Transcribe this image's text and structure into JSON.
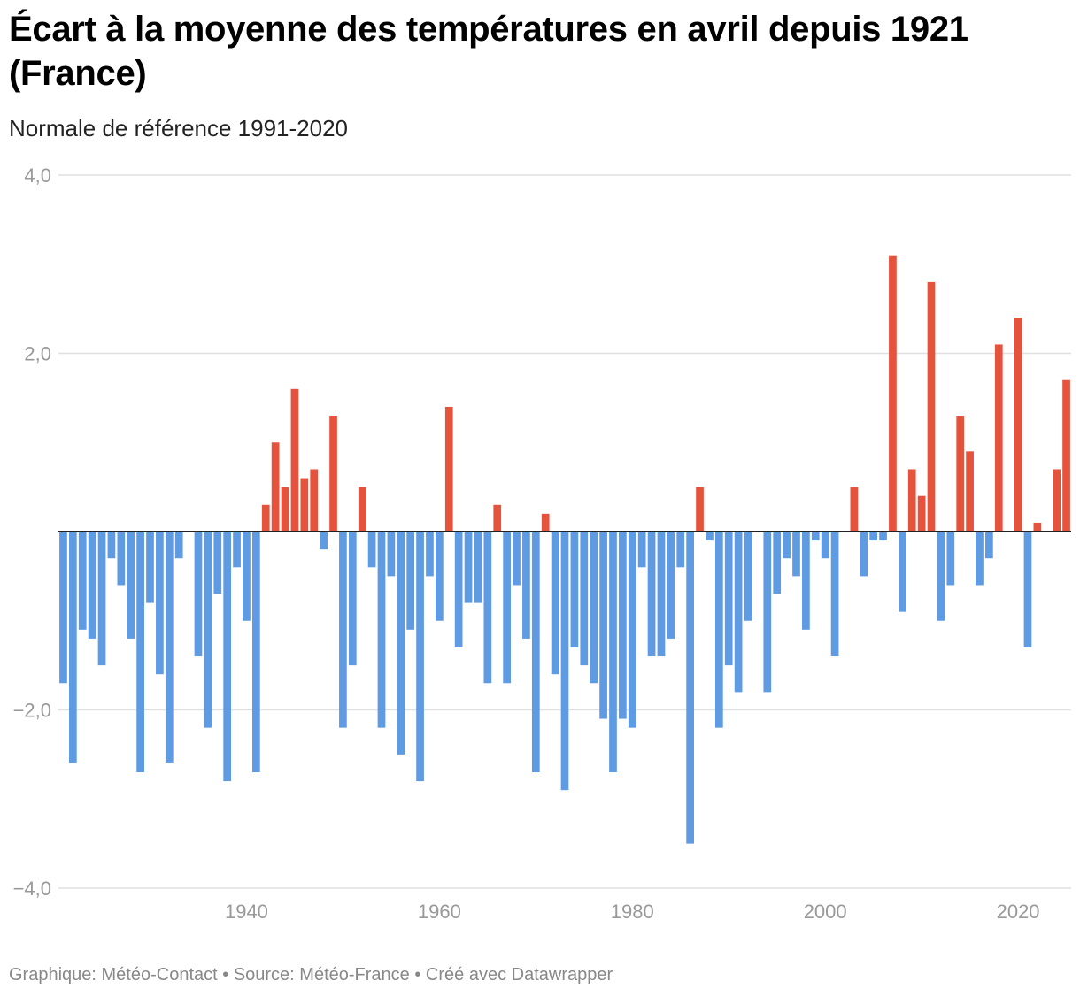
{
  "title": "Écart à la moyenne des températures en avril depuis 1921 (France)",
  "subtitle": "Normale de référence 1991-2020",
  "footer": {
    "credit": "Graphique: Météo-Contact",
    "separator": " • ",
    "source": "Source: Météo-France",
    "tool": "Créé avec Datawrapper"
  },
  "colors": {
    "positive": "#e5533d",
    "negative": "#5f9be3",
    "grid": "#e0e0e0",
    "zero": "#222222",
    "tick_text": "#999999"
  },
  "chart_data": {
    "type": "bar",
    "title": "Écart à la moyenne des températures en avril depuis 1921 (France)",
    "subtitle": "Normale de référence 1991-2020",
    "xlabel": "",
    "ylabel": "",
    "ylim": [
      -4,
      4
    ],
    "y_ticks": [
      4,
      2,
      -2,
      -4
    ],
    "y_tick_labels": [
      "4,0",
      "2,0",
      "−2,0",
      "−4,0"
    ],
    "x_ticks": [
      1940,
      1960,
      1980,
      2000,
      2020
    ],
    "x_tick_labels": [
      "1940",
      "1960",
      "1980",
      "2000",
      "2020"
    ],
    "start_year": 1921,
    "end_year": 2025,
    "values": [
      -1.7,
      -2.6,
      -1.1,
      -1.2,
      -1.5,
      -0.3,
      -0.6,
      -1.2,
      -2.7,
      -0.8,
      -1.6,
      -2.6,
      -0.3,
      0.0,
      -1.4,
      -2.2,
      -0.7,
      -2.8,
      -0.4,
      -1.0,
      -2.7,
      0.3,
      1.0,
      0.5,
      1.6,
      0.6,
      0.7,
      -0.2,
      1.3,
      -2.2,
      -1.5,
      0.5,
      -0.4,
      -2.2,
      -0.5,
      -2.5,
      -1.1,
      -2.8,
      -0.5,
      -1.0,
      1.4,
      -1.3,
      -0.8,
      -0.8,
      -1.7,
      0.3,
      -1.7,
      -0.6,
      -1.2,
      -2.7,
      0.2,
      -1.6,
      -2.9,
      -1.3,
      -1.5,
      -1.7,
      -2.1,
      -2.7,
      -2.1,
      -2.2,
      -0.4,
      -1.4,
      -1.4,
      -1.2,
      -0.4,
      -3.5,
      0.5,
      -0.1,
      -2.2,
      -1.5,
      -1.8,
      -1.0,
      0.0,
      -1.8,
      -0.7,
      -0.3,
      -0.5,
      -1.1,
      -0.1,
      -0.3,
      -1.4,
      0.0,
      0.5,
      -0.5,
      -0.1,
      -0.1,
      3.1,
      -0.9,
      0.7,
      0.4,
      2.8,
      -1.0,
      -0.6,
      1.3,
      0.9,
      -0.6,
      -0.3,
      2.1,
      0.0,
      2.4,
      -1.3,
      0.1,
      0.0,
      0.7,
      1.7
    ]
  }
}
